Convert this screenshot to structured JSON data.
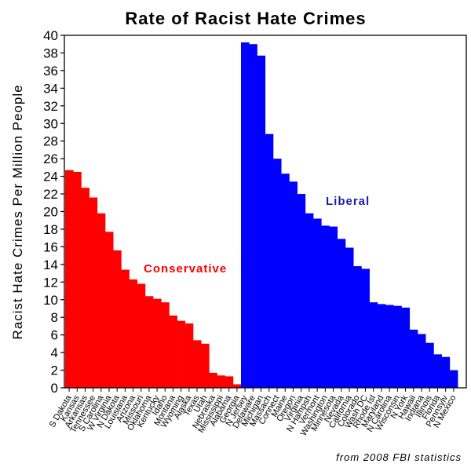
{
  "chart_data": {
    "type": "bar",
    "title": "Rate of Racist Hate Crimes",
    "ylabel": "Racist Hate Crimes Per Million People",
    "xlabel": "",
    "ylim": [
      0,
      40
    ],
    "yticks": [
      0,
      2,
      4,
      6,
      8,
      10,
      12,
      14,
      16,
      18,
      20,
      22,
      24,
      26,
      28,
      30,
      32,
      34,
      36,
      38,
      40
    ],
    "source_note": "from 2008 FBI statistics",
    "colors": {
      "conservative": "#ff0000",
      "liberal": "#0000ff"
    },
    "groups": [
      {
        "name": "Conservative",
        "label_color": "#ff0000"
      },
      {
        "name": "Liberal",
        "label_color": "#1e1ea8"
      }
    ],
    "series": [
      {
        "name": "Conservative",
        "categories": [
          "S Dakota",
          "Kansas",
          "Arkansas",
          "Tennessee",
          "S Carolina",
          "W Virginia",
          "N Dakota",
          "Louisiana",
          "Arizona",
          "Missouri",
          "Oklahoma",
          "Kentucky",
          "Idaho",
          "Montana",
          "Wyoming",
          "Alaska",
          "Texas",
          "Utah",
          "Nebraska",
          "Mississippi",
          "Alabama",
          "Georgia"
        ],
        "values": [
          24.7,
          24.5,
          22.7,
          21.6,
          19.8,
          17.7,
          15.6,
          13.4,
          12.3,
          11.8,
          10.4,
          10.1,
          9.7,
          8.2,
          7.6,
          7.3,
          5.4,
          5.0,
          1.7,
          1.4,
          1.3,
          0.4
        ]
      },
      {
        "name": "Liberal",
        "categories": [
          "N Jersey",
          "Delaware",
          "Michigan",
          "Massach",
          "Connect",
          "Maine",
          "Oregon",
          "Virginia",
          "N Hampsh",
          "Vermont",
          "Washington",
          "Minnesota",
          "Nevada",
          "California",
          "Colorado",
          "Wash DC",
          "Rhode Isl",
          "Maryland",
          "N Carolina",
          "Wisconsin",
          "N York",
          "Hawaii",
          "Indiana",
          "Illinois",
          "Florida",
          "Pennsylv",
          "N Mexico"
        ],
        "values": [
          39.2,
          39.0,
          37.7,
          28.8,
          26.0,
          24.3,
          23.4,
          22.0,
          19.8,
          19.2,
          18.4,
          18.3,
          16.9,
          15.9,
          13.8,
          13.5,
          9.7,
          9.5,
          9.4,
          9.3,
          9.1,
          6.6,
          6.1,
          5.1,
          3.8,
          3.5,
          2.0
        ]
      }
    ]
  }
}
